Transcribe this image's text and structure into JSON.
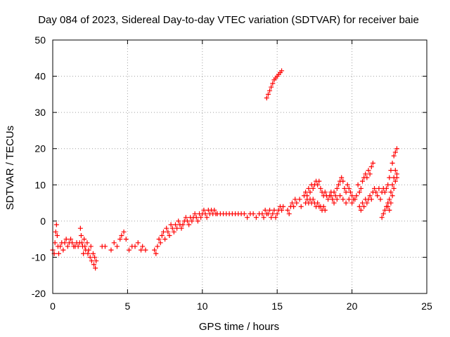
{
  "chart_data": {
    "type": "scatter",
    "title": "Day 084 of 2023, Sidereal Day-to-day VTEC variation (SDTVAR) for receiver baie",
    "xlabel": "GPS time / hours",
    "ylabel": "SDTVAR / TECUs",
    "xlim": [
      0,
      25
    ],
    "ylim": [
      -20,
      50
    ],
    "xticks": [
      0,
      5,
      10,
      15,
      20,
      25
    ],
    "yticks": [
      -20,
      -10,
      0,
      10,
      20,
      30,
      40,
      50
    ],
    "grid": true,
    "marker": "+",
    "color": "#ff0000",
    "series": [
      {
        "name": "SDTVAR",
        "points": [
          [
            0.0,
            -8
          ],
          [
            0.1,
            -9
          ],
          [
            0.15,
            -6
          ],
          [
            0.2,
            -3
          ],
          [
            0.25,
            -1
          ],
          [
            0.3,
            -4
          ],
          [
            0.35,
            -7
          ],
          [
            0.4,
            -9
          ],
          [
            0.5,
            -7
          ],
          [
            0.6,
            -6
          ],
          [
            0.7,
            -8
          ],
          [
            0.8,
            -6
          ],
          [
            0.9,
            -5
          ],
          [
            1.0,
            -7
          ],
          [
            1.1,
            -6
          ],
          [
            1.2,
            -5
          ],
          [
            1.3,
            -6
          ],
          [
            1.4,
            -7
          ],
          [
            1.5,
            -7
          ],
          [
            1.6,
            -6
          ],
          [
            1.7,
            -7
          ],
          [
            1.8,
            -6
          ],
          [
            1.85,
            -2
          ],
          [
            1.9,
            -4
          ],
          [
            1.95,
            -6
          ],
          [
            2.0,
            -7
          ],
          [
            2.05,
            -9
          ],
          [
            2.1,
            -5
          ],
          [
            2.15,
            -7
          ],
          [
            2.2,
            -8
          ],
          [
            2.3,
            -6
          ],
          [
            2.35,
            -9
          ],
          [
            2.4,
            -8
          ],
          [
            2.5,
            -10
          ],
          [
            2.55,
            -7
          ],
          [
            2.6,
            -11
          ],
          [
            2.7,
            -9
          ],
          [
            2.75,
            -12
          ],
          [
            2.8,
            -10
          ],
          [
            2.85,
            -13
          ],
          [
            2.9,
            -11
          ],
          [
            3.3,
            -7
          ],
          [
            3.5,
            -7
          ],
          [
            3.9,
            -8
          ],
          [
            4.1,
            -6
          ],
          [
            4.3,
            -7
          ],
          [
            4.5,
            -5
          ],
          [
            4.6,
            -4
          ],
          [
            4.75,
            -3
          ],
          [
            4.9,
            -5
          ],
          [
            5.1,
            -8
          ],
          [
            5.3,
            -7
          ],
          [
            5.5,
            -7
          ],
          [
            5.7,
            -6
          ],
          [
            5.9,
            -8
          ],
          [
            6.0,
            -7
          ],
          [
            6.2,
            -8
          ],
          [
            6.8,
            -8
          ],
          [
            6.9,
            -9
          ],
          [
            7.0,
            -7
          ],
          [
            7.1,
            -5
          ],
          [
            7.2,
            -6
          ],
          [
            7.3,
            -4
          ],
          [
            7.4,
            -3
          ],
          [
            7.5,
            -5
          ],
          [
            7.6,
            -2
          ],
          [
            7.7,
            -3
          ],
          [
            7.8,
            -4
          ],
          [
            7.9,
            -1
          ],
          [
            8.0,
            -2
          ],
          [
            8.1,
            -3
          ],
          [
            8.2,
            -1
          ],
          [
            8.3,
            -2
          ],
          [
            8.4,
            0
          ],
          [
            8.5,
            -1
          ],
          [
            8.6,
            -2
          ],
          [
            8.7,
            -1
          ],
          [
            8.8,
            0
          ],
          [
            8.9,
            1
          ],
          [
            9.0,
            0
          ],
          [
            9.1,
            -1
          ],
          [
            9.2,
            1
          ],
          [
            9.3,
            0
          ],
          [
            9.4,
            1
          ],
          [
            9.5,
            2
          ],
          [
            9.6,
            1
          ],
          [
            9.7,
            0
          ],
          [
            9.8,
            2
          ],
          [
            9.9,
            1
          ],
          [
            10.0,
            2
          ],
          [
            10.1,
            3
          ],
          [
            10.2,
            2
          ],
          [
            10.3,
            1
          ],
          [
            10.4,
            3
          ],
          [
            10.5,
            2
          ],
          [
            10.6,
            3
          ],
          [
            10.7,
            2
          ],
          [
            10.8,
            3
          ],
          [
            10.9,
            2
          ],
          [
            11.0,
            2
          ],
          [
            11.2,
            2
          ],
          [
            11.4,
            2
          ],
          [
            11.6,
            2
          ],
          [
            11.8,
            2
          ],
          [
            12.0,
            2
          ],
          [
            12.2,
            2
          ],
          [
            12.4,
            2
          ],
          [
            12.6,
            2
          ],
          [
            12.8,
            2
          ],
          [
            13.0,
            1
          ],
          [
            13.2,
            2
          ],
          [
            13.4,
            2
          ],
          [
            13.6,
            1
          ],
          [
            13.8,
            2
          ],
          [
            14.0,
            2
          ],
          [
            14.1,
            1
          ],
          [
            14.2,
            3
          ],
          [
            14.3,
            2
          ],
          [
            14.4,
            2
          ],
          [
            14.5,
            3
          ],
          [
            14.6,
            1
          ],
          [
            14.7,
            2
          ],
          [
            14.8,
            3
          ],
          [
            14.9,
            1
          ],
          [
            15.0,
            2
          ],
          [
            15.1,
            3
          ],
          [
            15.2,
            4
          ],
          [
            15.3,
            3
          ],
          [
            15.4,
            4
          ],
          [
            14.3,
            34
          ],
          [
            14.4,
            35
          ],
          [
            14.5,
            36
          ],
          [
            14.6,
            37
          ],
          [
            14.7,
            38
          ],
          [
            14.8,
            39
          ],
          [
            14.9,
            39.5
          ],
          [
            15.0,
            40
          ],
          [
            15.1,
            40.5
          ],
          [
            15.2,
            41
          ],
          [
            15.3,
            41.5
          ],
          [
            15.7,
            3
          ],
          [
            15.8,
            2
          ],
          [
            15.9,
            4
          ],
          [
            16.0,
            5
          ],
          [
            16.1,
            4
          ],
          [
            16.2,
            6
          ],
          [
            16.3,
            5
          ],
          [
            16.5,
            6
          ],
          [
            16.6,
            4
          ],
          [
            16.8,
            7
          ],
          [
            16.9,
            8
          ],
          [
            17.0,
            7
          ],
          [
            17.1,
            9
          ],
          [
            17.2,
            8
          ],
          [
            17.3,
            10
          ],
          [
            17.4,
            9
          ],
          [
            17.5,
            10
          ],
          [
            17.6,
            11
          ],
          [
            17.7,
            10
          ],
          [
            17.8,
            11
          ],
          [
            17.9,
            9
          ],
          [
            18.0,
            8
          ],
          [
            18.1,
            7
          ],
          [
            18.2,
            8
          ],
          [
            18.3,
            7
          ],
          [
            18.4,
            6
          ],
          [
            18.5,
            7
          ],
          [
            18.6,
            8
          ],
          [
            16.9,
            5
          ],
          [
            17.0,
            6
          ],
          [
            17.1,
            5
          ],
          [
            17.2,
            6
          ],
          [
            17.3,
            5
          ],
          [
            17.4,
            6
          ],
          [
            17.5,
            5
          ],
          [
            17.6,
            4
          ],
          [
            17.7,
            5
          ],
          [
            17.8,
            4
          ],
          [
            17.9,
            4
          ],
          [
            18.0,
            3
          ],
          [
            18.1,
            4
          ],
          [
            18.2,
            3
          ],
          [
            18.6,
            7
          ],
          [
            18.7,
            6
          ],
          [
            18.8,
            8
          ],
          [
            18.9,
            7
          ],
          [
            19.0,
            9
          ],
          [
            19.1,
            10
          ],
          [
            19.2,
            11
          ],
          [
            19.3,
            12
          ],
          [
            19.4,
            11
          ],
          [
            19.5,
            9
          ],
          [
            19.6,
            8
          ],
          [
            19.7,
            10
          ],
          [
            19.8,
            9
          ],
          [
            19.9,
            8
          ],
          [
            20.0,
            7
          ],
          [
            20.1,
            6
          ],
          [
            18.7,
            6
          ],
          [
            18.8,
            5
          ],
          [
            19.0,
            6
          ],
          [
            19.2,
            7
          ],
          [
            19.4,
            6
          ],
          [
            19.6,
            5
          ],
          [
            19.8,
            6
          ],
          [
            20.0,
            5
          ],
          [
            20.2,
            6
          ],
          [
            20.3,
            7
          ],
          [
            20.4,
            10
          ],
          [
            20.5,
            8
          ],
          [
            20.6,
            9
          ],
          [
            20.7,
            11
          ],
          [
            20.8,
            12
          ],
          [
            20.9,
            13
          ],
          [
            21.0,
            12
          ],
          [
            21.1,
            14
          ],
          [
            21.2,
            13
          ],
          [
            21.3,
            15
          ],
          [
            21.4,
            16
          ],
          [
            20.5,
            4
          ],
          [
            20.6,
            3
          ],
          [
            20.7,
            5
          ],
          [
            20.8,
            4
          ],
          [
            20.9,
            6
          ],
          [
            21.0,
            5
          ],
          [
            21.1,
            6
          ],
          [
            21.2,
            7
          ],
          [
            21.3,
            6
          ],
          [
            21.4,
            8
          ],
          [
            21.5,
            9
          ],
          [
            21.6,
            8
          ],
          [
            21.7,
            7
          ],
          [
            21.8,
            9
          ],
          [
            21.9,
            6
          ],
          [
            22.0,
            8
          ],
          [
            22.1,
            9
          ],
          [
            22.2,
            8
          ],
          [
            22.3,
            9
          ],
          [
            22.4,
            10
          ],
          [
            22.5,
            12
          ],
          [
            22.6,
            14
          ],
          [
            22.7,
            16
          ],
          [
            22.8,
            18
          ],
          [
            22.9,
            19
          ],
          [
            23.0,
            20
          ],
          [
            22.0,
            1
          ],
          [
            22.1,
            2
          ],
          [
            22.2,
            3
          ],
          [
            22.3,
            4
          ],
          [
            22.4,
            5
          ],
          [
            22.5,
            6
          ],
          [
            22.6,
            8
          ],
          [
            22.7,
            10
          ],
          [
            22.8,
            12
          ],
          [
            22.9,
            14
          ],
          [
            23.0,
            12
          ],
          [
            22.4,
            4
          ],
          [
            22.5,
            3
          ],
          [
            22.6,
            5
          ],
          [
            22.7,
            7
          ],
          [
            22.8,
            9
          ],
          [
            22.9,
            11
          ],
          [
            23.0,
            13
          ]
        ]
      }
    ]
  }
}
